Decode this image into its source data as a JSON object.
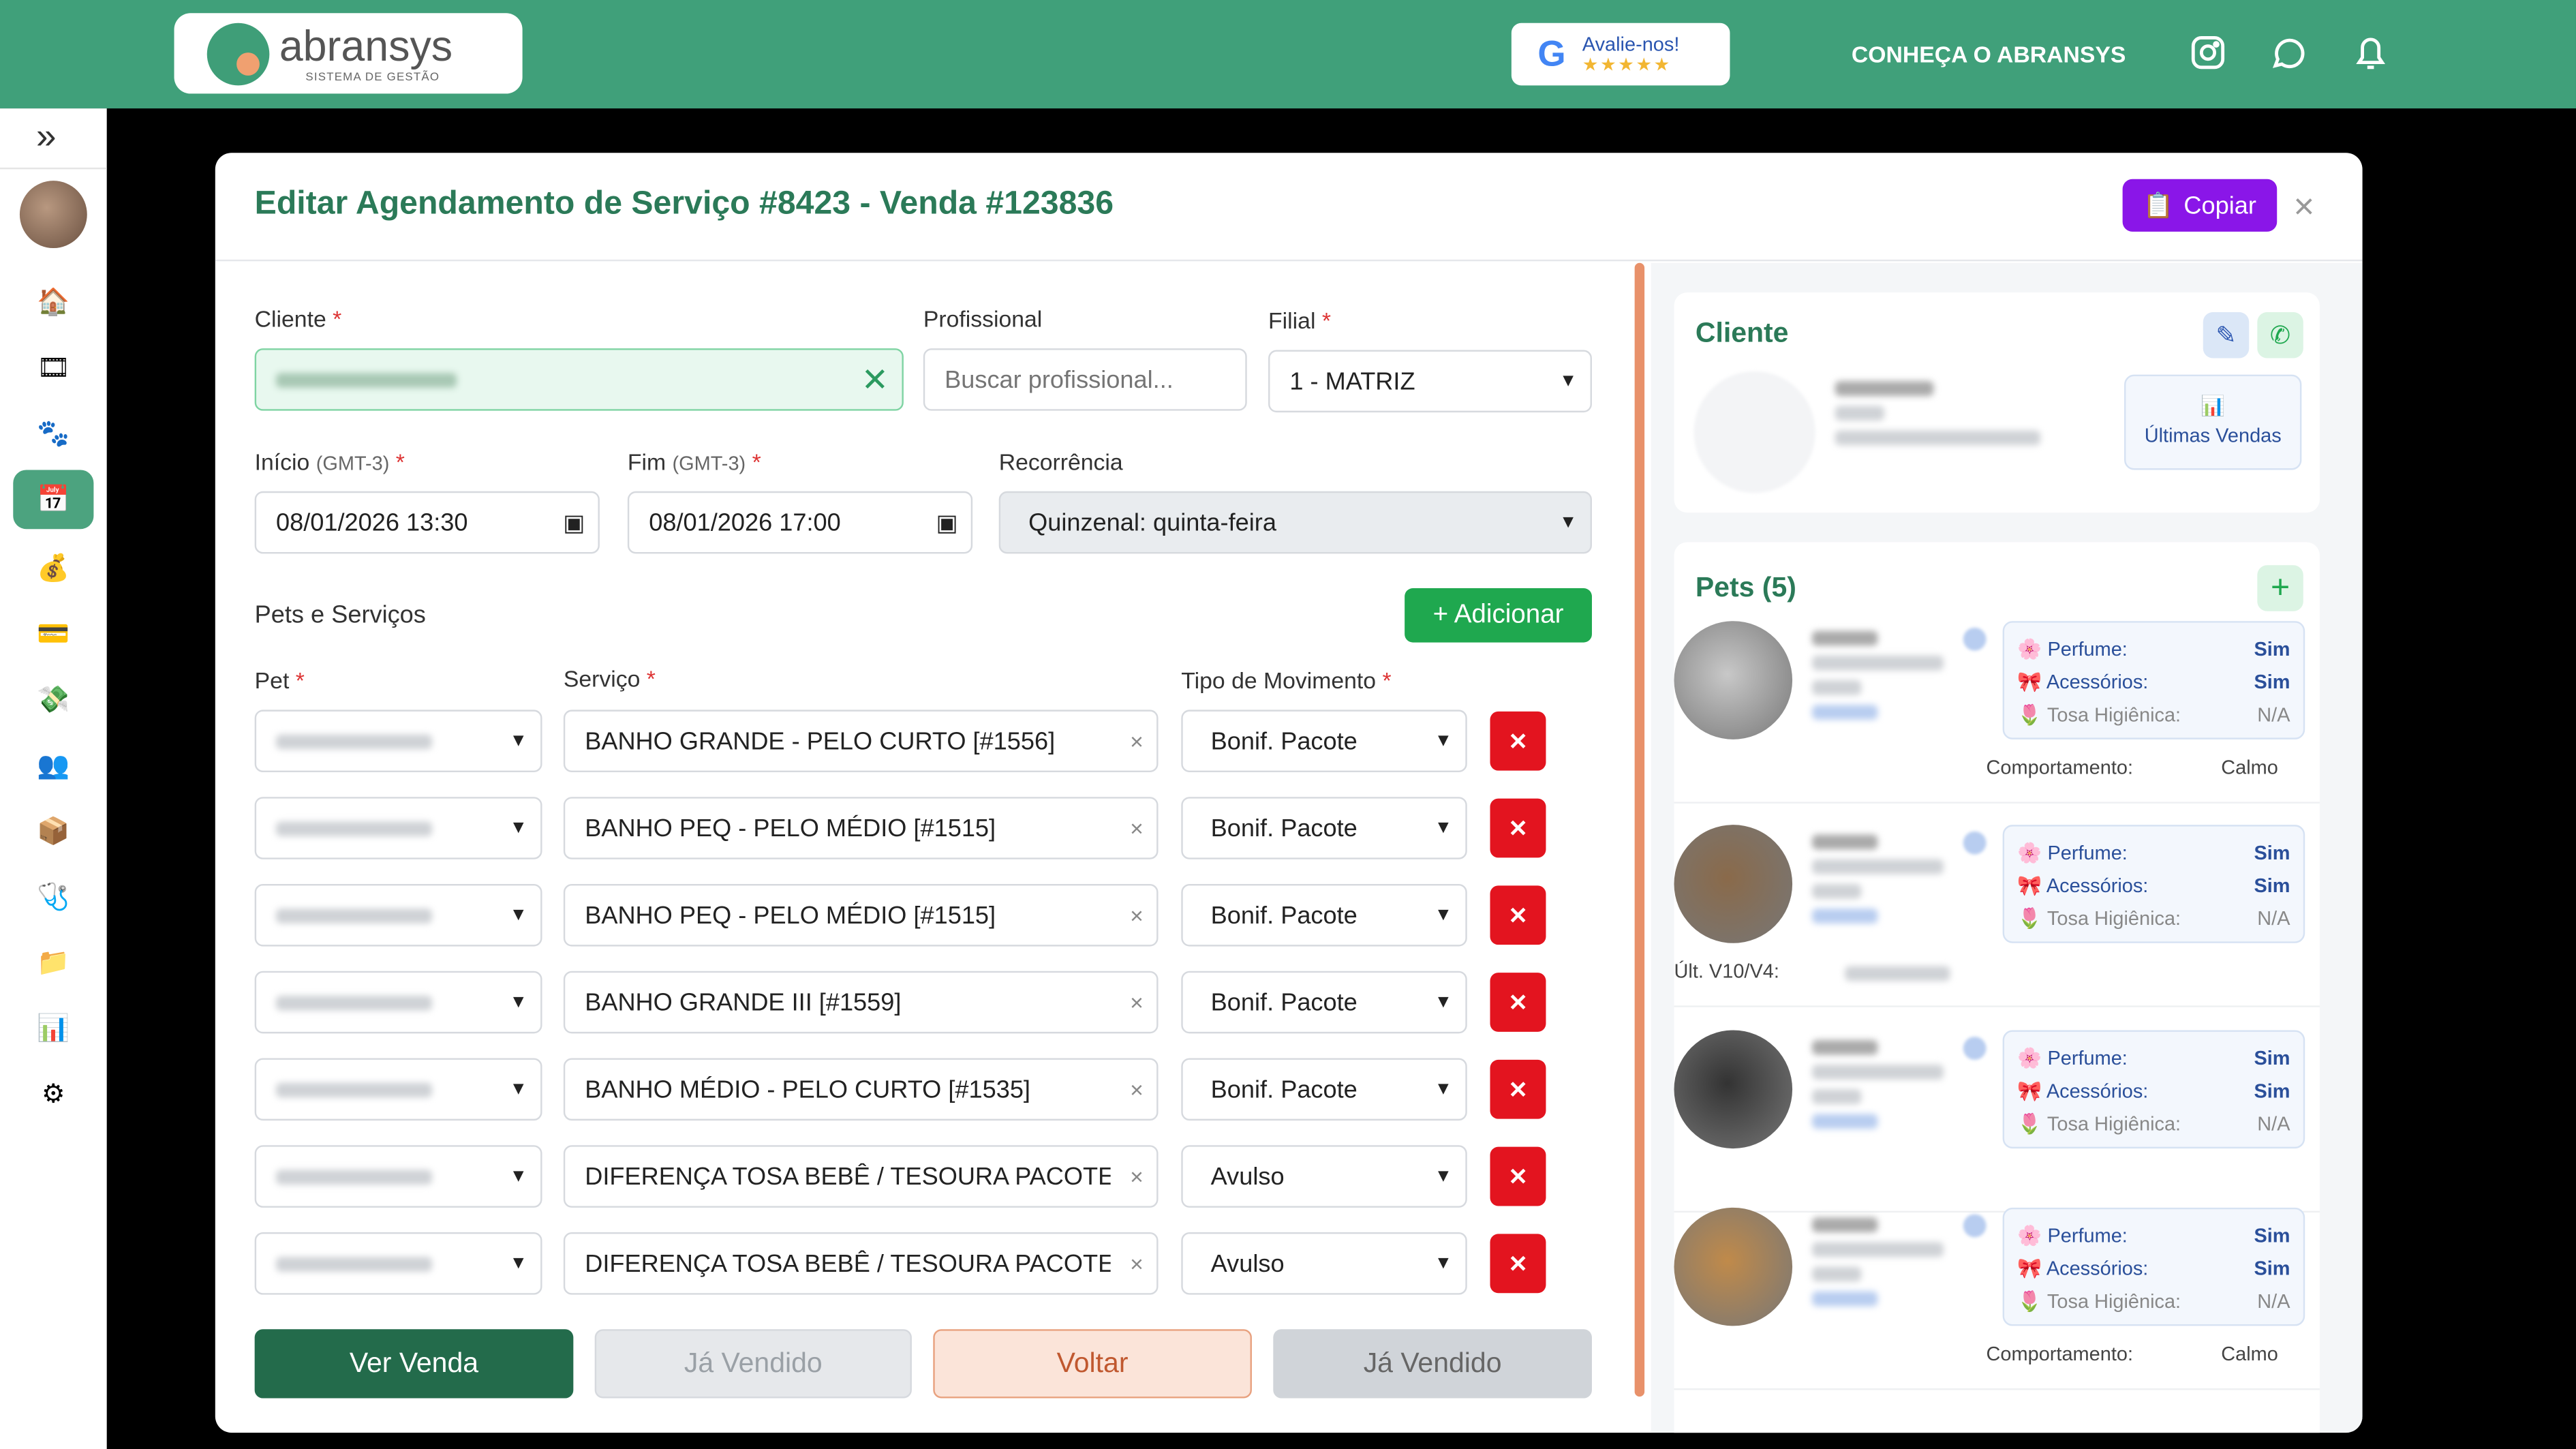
{
  "header": {
    "logo_text": "abransys",
    "logo_sub": "SISTEMA DE GESTÃO",
    "google_label": "Avalie-nos!",
    "google_stars": "★★★★★",
    "conheca": "CONHEÇA O ABRANSYS",
    "colors": {
      "topbar": "#40a07a"
    }
  },
  "sidebar": {
    "expand_icon": "»",
    "items": [
      {
        "icon": "home-icon",
        "glyph": "🏠"
      },
      {
        "icon": "film-icon",
        "glyph": "🎞"
      },
      {
        "icon": "paw-icon",
        "glyph": "🐾"
      },
      {
        "icon": "calendar-icon",
        "glyph": "📅",
        "active": true
      },
      {
        "icon": "money-bag-icon",
        "glyph": "💰"
      },
      {
        "icon": "card-icon",
        "glyph": "💳"
      },
      {
        "icon": "cash-icon",
        "glyph": "💸"
      },
      {
        "icon": "users-icon",
        "glyph": "👥"
      },
      {
        "icon": "box-icon",
        "glyph": "📦"
      },
      {
        "icon": "stethoscope-icon",
        "glyph": "🩺"
      },
      {
        "icon": "folder-icon",
        "glyph": "📁"
      },
      {
        "icon": "chart-icon",
        "glyph": "📊"
      },
      {
        "icon": "gear-icon",
        "glyph": "⚙"
      }
    ]
  },
  "modal": {
    "title": "Editar Agendamento de Serviço #8423 - Venda #123836",
    "copy_label": "Copiar",
    "close": "×",
    "form": {
      "cliente_label": "Cliente",
      "profissional_label": "Profissional",
      "profissional_placeholder": "Buscar profissional...",
      "filial_label": "Filial",
      "filial_value": "1 - MATRIZ",
      "inicio_label": "Início",
      "fim_label": "Fim",
      "tz": "(GMT-3)",
      "inicio_value": "08/01/2026 13:30",
      "fim_value": "08/01/2026 17:00",
      "recorrencia_label": "Recorrência",
      "recorrencia_value": "Quinzenal: quinta-feira",
      "pets_servicos_label": "Pets e Serviços",
      "adicionar_label": "+ Adicionar",
      "col_pet": "Pet",
      "col_servico": "Serviço",
      "col_tipo": "Tipo de Movimento",
      "rows": [
        {
          "servico": "BANHO GRANDE - PELO CURTO [#1556]",
          "tipo": "Bonif. Pacote"
        },
        {
          "servico": "BANHO PEQ - PELO MÉDIO [#1515]",
          "tipo": "Bonif. Pacote"
        },
        {
          "servico": "BANHO PEQ - PELO MÉDIO [#1515]",
          "tipo": "Bonif. Pacote"
        },
        {
          "servico": "BANHO GRANDE III [#1559]",
          "tipo": "Bonif. Pacote"
        },
        {
          "servico": "BANHO MÉDIO - PELO CURTO [#1535]",
          "tipo": "Bonif. Pacote"
        },
        {
          "servico": "DIFERENÇA TOSA BEBÊ / TESOURA PACOTE [#",
          "tipo": "Avulso"
        },
        {
          "servico": "DIFERENÇA TOSA BEBÊ / TESOURA PACOTE [#",
          "tipo": "Avulso"
        }
      ]
    },
    "buttons": {
      "ver_venda": "Ver Venda",
      "ja_vendido_1": "Já Vendido",
      "voltar": "Voltar",
      "ja_vendido_2": "Já Vendido"
    },
    "right": {
      "cliente_title": "Cliente",
      "ultimas_vendas": "Últimas Vendas",
      "pets_title": "Pets (5)",
      "ult_v10": "Últ. V10/V4:",
      "pets": [
        {
          "perfume": "Sim",
          "acessorios": "Sim",
          "tosa": "N/A",
          "comportamento": "Calmo",
          "img": "#c8c8c8"
        },
        {
          "perfume": "Sim",
          "acessorios": "Sim",
          "tosa": "N/A",
          "img": "#8a6a4a"
        },
        {
          "perfume": "Sim",
          "acessorios": "Sim",
          "tosa": "N/A",
          "img": "#333"
        },
        {
          "perfume": "Sim",
          "acessorios": "Sim",
          "tosa": "N/A",
          "comportamento": "Calmo",
          "img": "#c08a4a"
        }
      ],
      "perfume_label": "Perfume:",
      "acessorios_label": "Acessórios:",
      "tosa_label": "Tosa Higiênica:",
      "comportamento_label": "Comportamento:"
    }
  }
}
